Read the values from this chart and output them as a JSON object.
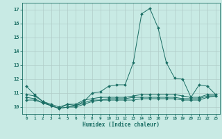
{
  "xlabel": "Humidex (Indice chaleur)",
  "background_color": "#c8eae4",
  "grid_color": "#b0ccc8",
  "line_color": "#1a6e64",
  "x": [
    0,
    1,
    2,
    3,
    4,
    5,
    6,
    7,
    8,
    9,
    10,
    11,
    12,
    13,
    14,
    15,
    16,
    17,
    18,
    19,
    20,
    21,
    22,
    23
  ],
  "line1": [
    11.5,
    10.9,
    10.4,
    10.1,
    9.9,
    10.2,
    10.1,
    10.4,
    11.0,
    11.1,
    11.5,
    11.6,
    11.6,
    13.2,
    16.7,
    17.1,
    15.7,
    13.2,
    12.1,
    12.0,
    10.7,
    11.6,
    11.5,
    10.9
  ],
  "line2": [
    10.9,
    10.8,
    10.4,
    10.2,
    10.0,
    10.2,
    10.2,
    10.5,
    10.6,
    10.7,
    10.7,
    10.7,
    10.7,
    10.8,
    10.9,
    10.9,
    10.9,
    10.9,
    10.9,
    10.8,
    10.7,
    10.7,
    10.9,
    10.9
  ],
  "line3": [
    10.7,
    10.6,
    10.3,
    10.1,
    9.9,
    10.0,
    10.1,
    10.3,
    10.5,
    10.5,
    10.6,
    10.6,
    10.6,
    10.7,
    10.7,
    10.7,
    10.7,
    10.7,
    10.7,
    10.6,
    10.6,
    10.6,
    10.8,
    10.8
  ],
  "line4": [
    10.5,
    10.5,
    10.3,
    10.1,
    9.9,
    10.0,
    10.0,
    10.2,
    10.4,
    10.5,
    10.5,
    10.5,
    10.5,
    10.5,
    10.6,
    10.6,
    10.6,
    10.6,
    10.6,
    10.5,
    10.5,
    10.5,
    10.7,
    10.8
  ],
  "ylim": [
    9.5,
    17.5
  ],
  "yticks": [
    10,
    11,
    12,
    13,
    14,
    15,
    16,
    17
  ],
  "xticks": [
    0,
    1,
    2,
    3,
    4,
    5,
    6,
    7,
    8,
    9,
    10,
    11,
    12,
    13,
    14,
    15,
    16,
    17,
    18,
    19,
    20,
    21,
    22,
    23
  ],
  "markersize": 2.0
}
